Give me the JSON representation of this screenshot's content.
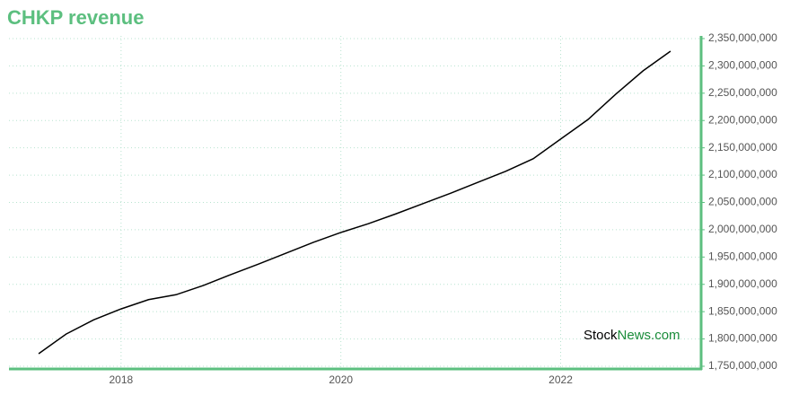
{
  "chart_data": {
    "type": "line",
    "title": "CHKP revenue",
    "watermark": {
      "prefix": "Stock",
      "suffix": "News.com"
    },
    "x": [
      2017.25,
      2017.5,
      2017.75,
      2018.0,
      2018.25,
      2018.5,
      2018.75,
      2019.0,
      2019.25,
      2019.5,
      2019.75,
      2020.0,
      2020.25,
      2020.5,
      2020.75,
      2021.0,
      2021.25,
      2021.5,
      2021.75,
      2022.0,
      2022.25,
      2022.5,
      2022.75,
      2023.0
    ],
    "series": [
      {
        "name": "CHKP revenue",
        "color": "#000000",
        "values": [
          1773000000,
          1809000000,
          1835000000,
          1855000000,
          1872000000,
          1881000000,
          1898000000,
          1918000000,
          1937000000,
          1957000000,
          1977000000,
          1995000000,
          2011000000,
          2029000000,
          2048000000,
          2067000000,
          2087000000,
          2107000000,
          2130000000,
          2166000000,
          2202000000,
          2248000000,
          2291000000,
          2327000000
        ]
      }
    ],
    "xlim": [
      2016.98,
      2023.27
    ],
    "xticks": [
      2018,
      2020,
      2022
    ],
    "ylim": [
      1746700000,
      2354900000
    ],
    "yticks": [
      {
        "value": 1750000000,
        "label": "1,750,000,000"
      },
      {
        "value": 1800000000,
        "label": "1,800,000,000"
      },
      {
        "value": 1850000000,
        "label": "1,850,000,000"
      },
      {
        "value": 1900000000,
        "label": "1,900,000,000"
      },
      {
        "value": 1950000000,
        "label": "1,950,000,000"
      },
      {
        "value": 2000000000,
        "label": "2,000,000,000"
      },
      {
        "value": 2050000000,
        "label": "2,050,000,000"
      },
      {
        "value": 2100000000,
        "label": "2,100,000,000"
      },
      {
        "value": 2150000000,
        "label": "2,150,000,000"
      },
      {
        "value": 2200000000,
        "label": "2,200,000,000"
      },
      {
        "value": 2250000000,
        "label": "2,250,000,000"
      },
      {
        "value": 2300000000,
        "label": "2,300,000,000"
      },
      {
        "value": 2350000000,
        "label": "2,350,000,000"
      }
    ],
    "grid": true,
    "axis_color": "#5cbf7f",
    "grid_color": "#b7e3cf"
  }
}
